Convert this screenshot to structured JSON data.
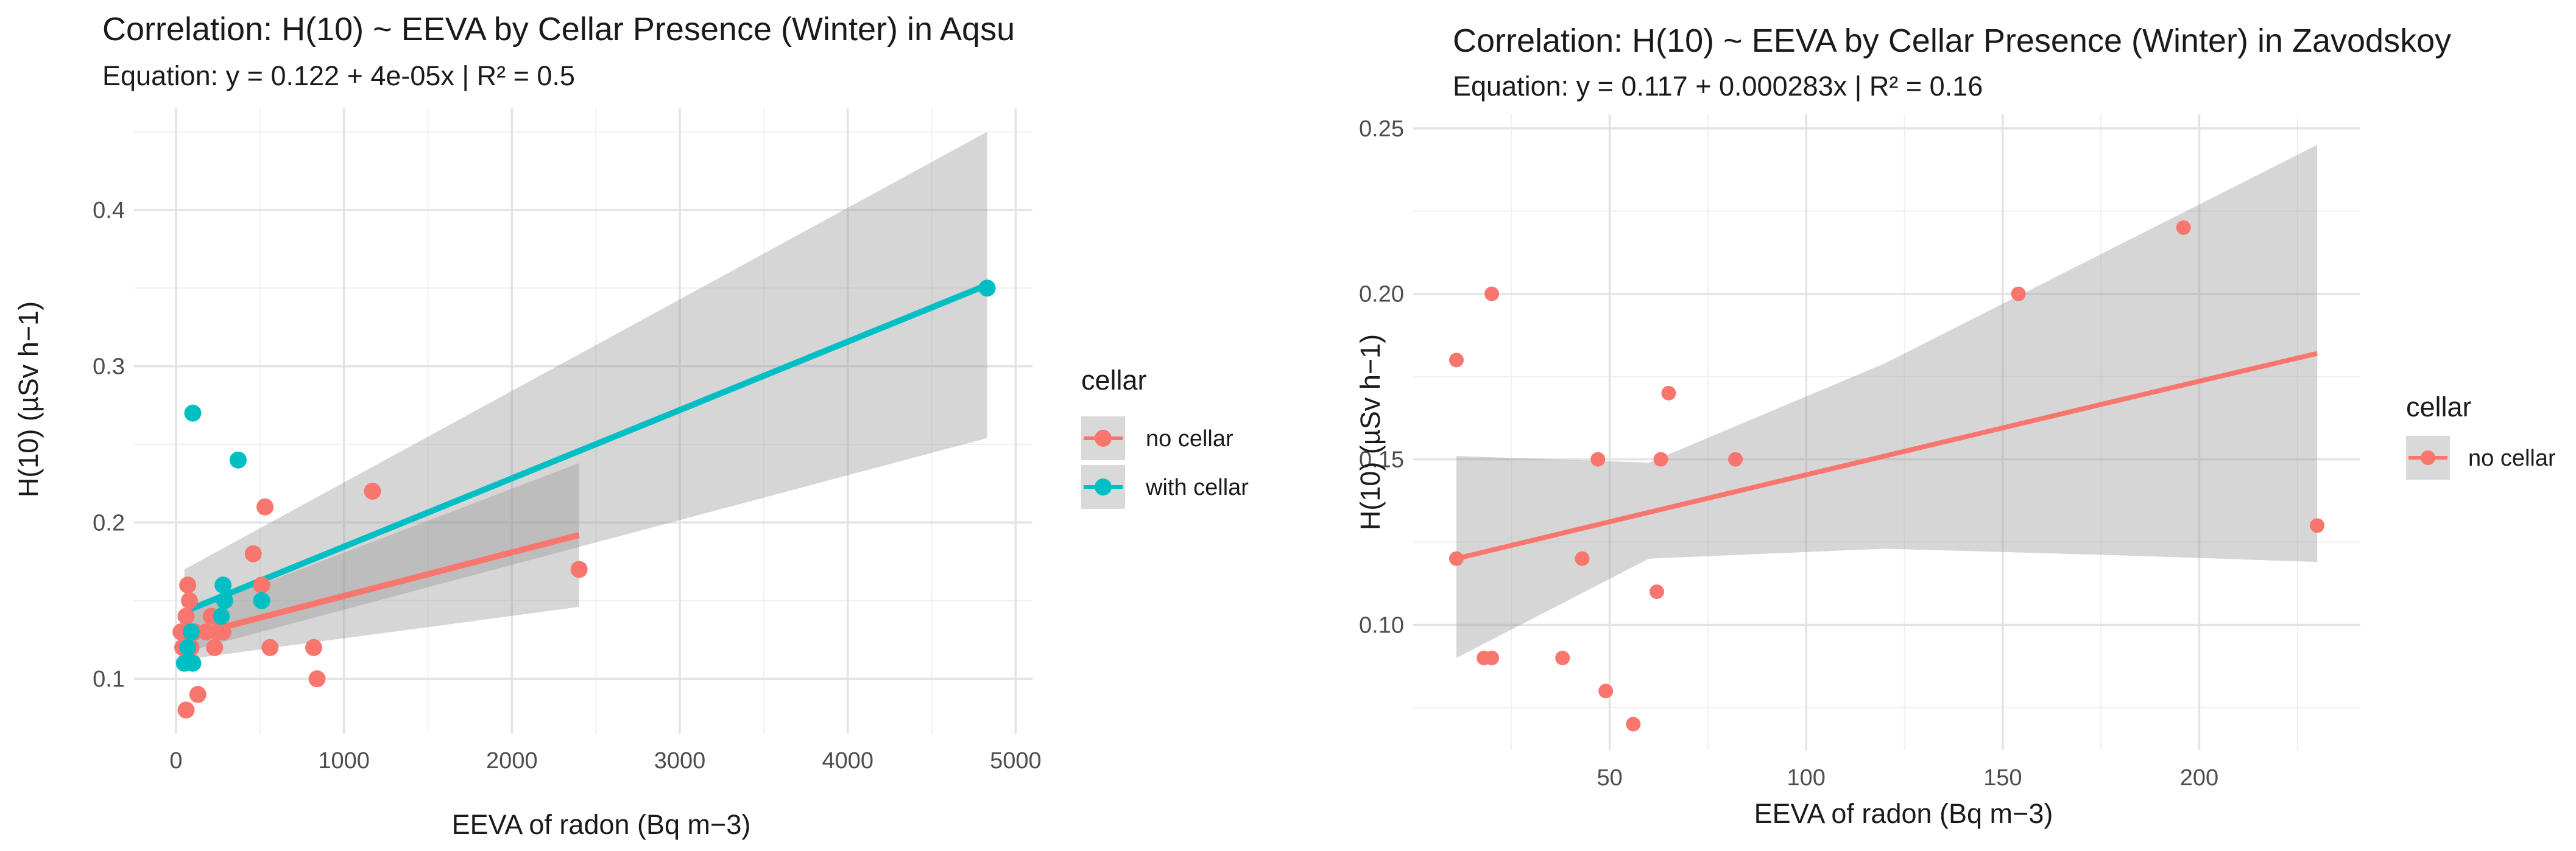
{
  "chart_data": [
    {
      "type": "scatter",
      "title": "Correlation: H(10) ~ EEVA by Cellar Presence (Winter) in Aqsu",
      "subtitle": "Equation: y = 0.122 + 4e-05x | R² = 0.5",
      "xlabel": "EEVA of radon (Bq m−3)",
      "ylabel": "H(10) (µSv h−1)",
      "xlim": [
        -250,
        5100
      ],
      "ylim": [
        0.065,
        0.465
      ],
      "xticks": [
        0,
        1000,
        2000,
        3000,
        4000,
        5000
      ],
      "xtick_labels": [
        "0",
        "1000",
        "2000",
        "3000",
        "4000",
        "5000"
      ],
      "yticks": [
        0.1,
        0.2,
        0.3,
        0.4
      ],
      "ytick_labels": [
        "0.1",
        "0.2",
        "0.3",
        "0.4"
      ],
      "grid": true,
      "legend": {
        "title": "cellar",
        "position": "right",
        "entries": [
          {
            "label": "no cellar",
            "color": "#F8766D"
          },
          {
            "label": "with cellar",
            "color": "#00BFC4"
          }
        ]
      },
      "series": [
        {
          "name": "no cellar",
          "color": "#F8766D",
          "points": [
            {
              "x": 30,
              "y": 0.13
            },
            {
              "x": 40,
              "y": 0.12
            },
            {
              "x": 60,
              "y": 0.14
            },
            {
              "x": 70,
              "y": 0.16
            },
            {
              "x": 80,
              "y": 0.15
            },
            {
              "x": 60,
              "y": 0.08
            },
            {
              "x": 90,
              "y": 0.12
            },
            {
              "x": 110,
              "y": 0.13
            },
            {
              "x": 130,
              "y": 0.09
            },
            {
              "x": 180,
              "y": 0.13
            },
            {
              "x": 210,
              "y": 0.14
            },
            {
              "x": 230,
              "y": 0.12
            },
            {
              "x": 250,
              "y": 0.13
            },
            {
              "x": 280,
              "y": 0.13
            },
            {
              "x": 460,
              "y": 0.18
            },
            {
              "x": 510,
              "y": 0.16
            },
            {
              "x": 530,
              "y": 0.21
            },
            {
              "x": 560,
              "y": 0.12
            },
            {
              "x": 820,
              "y": 0.12
            },
            {
              "x": 840,
              "y": 0.1
            },
            {
              "x": 1170,
              "y": 0.22
            },
            {
              "x": 2400,
              "y": 0.17
            }
          ],
          "fit": {
            "x": [
              30,
              2400
            ],
            "y": [
              0.126,
              0.192
            ],
            "ci_lower": [
              0.112,
              0.146
            ],
            "ci_upper": [
              0.141,
              0.238
            ]
          }
        },
        {
          "name": "with cellar",
          "color": "#00BFC4",
          "points": [
            {
              "x": 50,
              "y": 0.11
            },
            {
              "x": 70,
              "y": 0.12
            },
            {
              "x": 90,
              "y": 0.13
            },
            {
              "x": 100,
              "y": 0.11
            },
            {
              "x": 100,
              "y": 0.27
            },
            {
              "x": 270,
              "y": 0.14
            },
            {
              "x": 280,
              "y": 0.16
            },
            {
              "x": 290,
              "y": 0.15
            },
            {
              "x": 370,
              "y": 0.24
            },
            {
              "x": 510,
              "y": 0.15
            },
            {
              "x": 4830,
              "y": 0.35
            }
          ],
          "fit": {
            "x": [
              50,
              4830
            ],
            "y": [
              0.143,
              0.352
            ],
            "ci_lower": [
              0.117,
              0.254
            ],
            "ci_upper": [
              0.17,
              0.45
            ]
          }
        }
      ]
    },
    {
      "type": "scatter",
      "title": "Correlation: H(10) ~ EEVA by Cellar Presence (Winter) in Zavodskoy",
      "subtitle": "Equation: y = 0.117 + 0.000283x | R² = 0.16",
      "xlabel": "EEVA of radon (Bq m−3)",
      "ylabel": "H(10) (µSv h−1)",
      "xlim": [
        0,
        241
      ],
      "ylim": [
        0.0622,
        0.2542
      ],
      "xticks": [
        50,
        100,
        150,
        200
      ],
      "xtick_labels": [
        "50",
        "100",
        "150",
        "200"
      ],
      "yticks": [
        0.1,
        0.15,
        0.2,
        0.25
      ],
      "ytick_labels": [
        "0.10",
        "0.15",
        "0.20",
        "0.25"
      ],
      "grid": true,
      "legend": {
        "title": "cellar",
        "position": "right",
        "entries": [
          {
            "label": "no cellar",
            "color": "#F8766D"
          }
        ]
      },
      "series": [
        {
          "name": "no cellar",
          "color": "#F8766D",
          "points": [
            {
              "x": 11,
              "y": 0.18
            },
            {
              "x": 11,
              "y": 0.12
            },
            {
              "x": 18,
              "y": 0.09
            },
            {
              "x": 20,
              "y": 0.09
            },
            {
              "x": 20,
              "y": 0.2
            },
            {
              "x": 38,
              "y": 0.09
            },
            {
              "x": 43,
              "y": 0.12
            },
            {
              "x": 47,
              "y": 0.15
            },
            {
              "x": 49,
              "y": 0.08
            },
            {
              "x": 56,
              "y": 0.07
            },
            {
              "x": 62,
              "y": 0.11
            },
            {
              "x": 63,
              "y": 0.15
            },
            {
              "x": 65,
              "y": 0.17
            },
            {
              "x": 82,
              "y": 0.15
            },
            {
              "x": 154,
              "y": 0.2
            },
            {
              "x": 196,
              "y": 0.22
            },
            {
              "x": 230,
              "y": 0.13
            }
          ],
          "fit": {
            "x": [
              11,
              60,
              120,
              180,
              230
            ],
            "y": [
              0.12,
              0.134,
              0.151,
              0.168,
              0.182
            ],
            "ci_lower": [
              0.09,
              0.12,
              0.123,
              0.121,
              0.119
            ],
            "ci_upper": [
              0.151,
              0.149,
              0.179,
              0.215,
              0.245
            ]
          }
        }
      ]
    }
  ]
}
